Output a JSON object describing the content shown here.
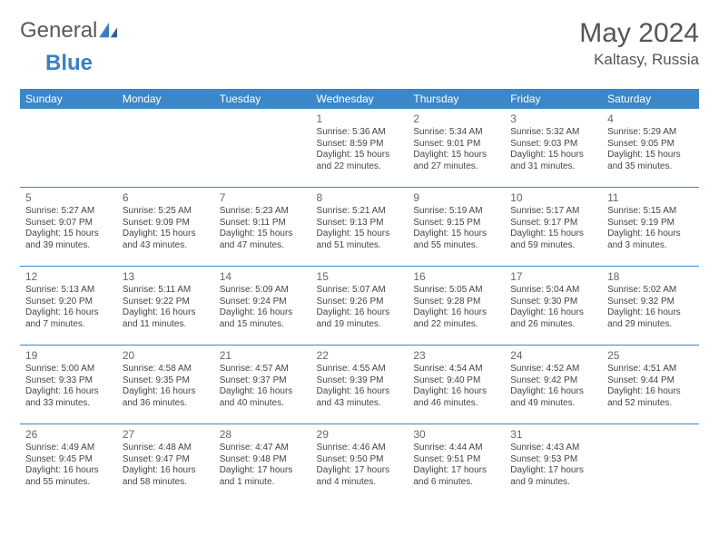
{
  "brand": {
    "word1": "General",
    "word2": "Blue"
  },
  "title": "May 2024",
  "location": "Kaltasy, Russia",
  "colors": {
    "header_bg": "#3b87c8",
    "header_text": "#ffffff",
    "cell_border": "#3b87c8",
    "daynum": "#666666",
    "info_text": "#444444"
  },
  "weekdays": [
    "Sunday",
    "Monday",
    "Tuesday",
    "Wednesday",
    "Thursday",
    "Friday",
    "Saturday"
  ],
  "weeks": [
    [
      null,
      null,
      null,
      {
        "n": "1",
        "sr": "Sunrise: 5:36 AM",
        "ss": "Sunset: 8:59 PM",
        "d1": "Daylight: 15 hours",
        "d2": "and 22 minutes."
      },
      {
        "n": "2",
        "sr": "Sunrise: 5:34 AM",
        "ss": "Sunset: 9:01 PM",
        "d1": "Daylight: 15 hours",
        "d2": "and 27 minutes."
      },
      {
        "n": "3",
        "sr": "Sunrise: 5:32 AM",
        "ss": "Sunset: 9:03 PM",
        "d1": "Daylight: 15 hours",
        "d2": "and 31 minutes."
      },
      {
        "n": "4",
        "sr": "Sunrise: 5:29 AM",
        "ss": "Sunset: 9:05 PM",
        "d1": "Daylight: 15 hours",
        "d2": "and 35 minutes."
      }
    ],
    [
      {
        "n": "5",
        "sr": "Sunrise: 5:27 AM",
        "ss": "Sunset: 9:07 PM",
        "d1": "Daylight: 15 hours",
        "d2": "and 39 minutes."
      },
      {
        "n": "6",
        "sr": "Sunrise: 5:25 AM",
        "ss": "Sunset: 9:09 PM",
        "d1": "Daylight: 15 hours",
        "d2": "and 43 minutes."
      },
      {
        "n": "7",
        "sr": "Sunrise: 5:23 AM",
        "ss": "Sunset: 9:11 PM",
        "d1": "Daylight: 15 hours",
        "d2": "and 47 minutes."
      },
      {
        "n": "8",
        "sr": "Sunrise: 5:21 AM",
        "ss": "Sunset: 9:13 PM",
        "d1": "Daylight: 15 hours",
        "d2": "and 51 minutes."
      },
      {
        "n": "9",
        "sr": "Sunrise: 5:19 AM",
        "ss": "Sunset: 9:15 PM",
        "d1": "Daylight: 15 hours",
        "d2": "and 55 minutes."
      },
      {
        "n": "10",
        "sr": "Sunrise: 5:17 AM",
        "ss": "Sunset: 9:17 PM",
        "d1": "Daylight: 15 hours",
        "d2": "and 59 minutes."
      },
      {
        "n": "11",
        "sr": "Sunrise: 5:15 AM",
        "ss": "Sunset: 9:19 PM",
        "d1": "Daylight: 16 hours",
        "d2": "and 3 minutes."
      }
    ],
    [
      {
        "n": "12",
        "sr": "Sunrise: 5:13 AM",
        "ss": "Sunset: 9:20 PM",
        "d1": "Daylight: 16 hours",
        "d2": "and 7 minutes."
      },
      {
        "n": "13",
        "sr": "Sunrise: 5:11 AM",
        "ss": "Sunset: 9:22 PM",
        "d1": "Daylight: 16 hours",
        "d2": "and 11 minutes."
      },
      {
        "n": "14",
        "sr": "Sunrise: 5:09 AM",
        "ss": "Sunset: 9:24 PM",
        "d1": "Daylight: 16 hours",
        "d2": "and 15 minutes."
      },
      {
        "n": "15",
        "sr": "Sunrise: 5:07 AM",
        "ss": "Sunset: 9:26 PM",
        "d1": "Daylight: 16 hours",
        "d2": "and 19 minutes."
      },
      {
        "n": "16",
        "sr": "Sunrise: 5:05 AM",
        "ss": "Sunset: 9:28 PM",
        "d1": "Daylight: 16 hours",
        "d2": "and 22 minutes."
      },
      {
        "n": "17",
        "sr": "Sunrise: 5:04 AM",
        "ss": "Sunset: 9:30 PM",
        "d1": "Daylight: 16 hours",
        "d2": "and 26 minutes."
      },
      {
        "n": "18",
        "sr": "Sunrise: 5:02 AM",
        "ss": "Sunset: 9:32 PM",
        "d1": "Daylight: 16 hours",
        "d2": "and 29 minutes."
      }
    ],
    [
      {
        "n": "19",
        "sr": "Sunrise: 5:00 AM",
        "ss": "Sunset: 9:33 PM",
        "d1": "Daylight: 16 hours",
        "d2": "and 33 minutes."
      },
      {
        "n": "20",
        "sr": "Sunrise: 4:58 AM",
        "ss": "Sunset: 9:35 PM",
        "d1": "Daylight: 16 hours",
        "d2": "and 36 minutes."
      },
      {
        "n": "21",
        "sr": "Sunrise: 4:57 AM",
        "ss": "Sunset: 9:37 PM",
        "d1": "Daylight: 16 hours",
        "d2": "and 40 minutes."
      },
      {
        "n": "22",
        "sr": "Sunrise: 4:55 AM",
        "ss": "Sunset: 9:39 PM",
        "d1": "Daylight: 16 hours",
        "d2": "and 43 minutes."
      },
      {
        "n": "23",
        "sr": "Sunrise: 4:54 AM",
        "ss": "Sunset: 9:40 PM",
        "d1": "Daylight: 16 hours",
        "d2": "and 46 minutes."
      },
      {
        "n": "24",
        "sr": "Sunrise: 4:52 AM",
        "ss": "Sunset: 9:42 PM",
        "d1": "Daylight: 16 hours",
        "d2": "and 49 minutes."
      },
      {
        "n": "25",
        "sr": "Sunrise: 4:51 AM",
        "ss": "Sunset: 9:44 PM",
        "d1": "Daylight: 16 hours",
        "d2": "and 52 minutes."
      }
    ],
    [
      {
        "n": "26",
        "sr": "Sunrise: 4:49 AM",
        "ss": "Sunset: 9:45 PM",
        "d1": "Daylight: 16 hours",
        "d2": "and 55 minutes."
      },
      {
        "n": "27",
        "sr": "Sunrise: 4:48 AM",
        "ss": "Sunset: 9:47 PM",
        "d1": "Daylight: 16 hours",
        "d2": "and 58 minutes."
      },
      {
        "n": "28",
        "sr": "Sunrise: 4:47 AM",
        "ss": "Sunset: 9:48 PM",
        "d1": "Daylight: 17 hours",
        "d2": "and 1 minute."
      },
      {
        "n": "29",
        "sr": "Sunrise: 4:46 AM",
        "ss": "Sunset: 9:50 PM",
        "d1": "Daylight: 17 hours",
        "d2": "and 4 minutes."
      },
      {
        "n": "30",
        "sr": "Sunrise: 4:44 AM",
        "ss": "Sunset: 9:51 PM",
        "d1": "Daylight: 17 hours",
        "d2": "and 6 minutes."
      },
      {
        "n": "31",
        "sr": "Sunrise: 4:43 AM",
        "ss": "Sunset: 9:53 PM",
        "d1": "Daylight: 17 hours",
        "d2": "and 9 minutes."
      },
      null
    ]
  ]
}
